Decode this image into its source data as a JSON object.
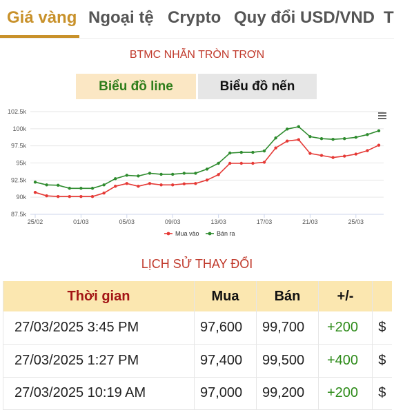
{
  "tabs": [
    {
      "label": "Giá vàng",
      "active": true
    },
    {
      "label": "Ngoại tệ",
      "active": false
    },
    {
      "label": "Crypto",
      "active": false
    },
    {
      "label": "Quy đổi USD/VND",
      "active": false
    },
    {
      "label": "T",
      "active": false
    }
  ],
  "chart_title": "BTMC NHẪN TRÒN TRƠN",
  "chart_toggle": {
    "line_label": "Biểu đồ line",
    "candle_label": "Biểu đồ nến",
    "selected": "line"
  },
  "chart_menu_icon": "hamburger-menu-icon",
  "chart_data": {
    "type": "line",
    "x": [
      "25/02",
      "26/02",
      "27/02",
      "28/02",
      "01/03",
      "02/03",
      "03/03",
      "04/03",
      "05/03",
      "06/03",
      "07/03",
      "08/03",
      "09/03",
      "10/03",
      "11/03",
      "12/03",
      "13/03",
      "14/03",
      "15/03",
      "16/03",
      "17/03",
      "18/03",
      "19/03",
      "20/03",
      "21/03",
      "22/03",
      "23/03",
      "24/03",
      "25/03",
      "26/03",
      "27/03"
    ],
    "xticks": [
      "25/02",
      "01/03",
      "05/03",
      "09/03",
      "13/03",
      "17/03",
      "21/03",
      "25/03"
    ],
    "yticks": [
      "87.5k",
      "90k",
      "92.5k",
      "95k",
      "97.5k",
      "100k",
      "102.5k"
    ],
    "ylim": [
      87500,
      102500
    ],
    "grid": true,
    "legend_position": "bottom",
    "series": [
      {
        "name": "Mua vào",
        "color": "#e53935",
        "values": [
          90700,
          90200,
          90100,
          90100,
          90100,
          90100,
          90600,
          91600,
          92000,
          91600,
          92000,
          91800,
          91800,
          91950,
          92000,
          92500,
          93300,
          94950,
          94950,
          94950,
          95100,
          97200,
          98200,
          98400,
          96400,
          96100,
          95800,
          96000,
          96300,
          96800,
          97600
        ]
      },
      {
        "name": "Bán ra",
        "color": "#2e8b2e",
        "values": [
          92200,
          91800,
          91750,
          91300,
          91300,
          91300,
          91800,
          92700,
          93200,
          93100,
          93500,
          93350,
          93350,
          93500,
          93500,
          94100,
          94950,
          96450,
          96550,
          96550,
          96750,
          98650,
          99950,
          100300,
          98850,
          98550,
          98450,
          98550,
          98750,
          99150,
          99700
        ]
      }
    ]
  },
  "history": {
    "title": "LỊCH SỬ THAY ĐỔI",
    "columns": {
      "time": "Thời gian",
      "buy": "Mua",
      "sell": "Bán",
      "change": "+/-",
      "currency": ""
    },
    "rows": [
      {
        "time": "27/03/2025 3:45 PM",
        "buy": "97,600",
        "sell": "99,700",
        "change": "+200",
        "currency": "$"
      },
      {
        "time": "27/03/2025 1:27 PM",
        "buy": "97,400",
        "sell": "99,500",
        "change": "+400",
        "currency": "$"
      },
      {
        "time": "27/03/2025 10:19 AM",
        "buy": "97,000",
        "sell": "99,200",
        "change": "+200",
        "currency": "$"
      }
    ]
  },
  "colors": {
    "accent": "#c8912a",
    "up": "#2e8b1a",
    "title_red": "#c0392b",
    "header_bg": "#fbe7b0"
  }
}
